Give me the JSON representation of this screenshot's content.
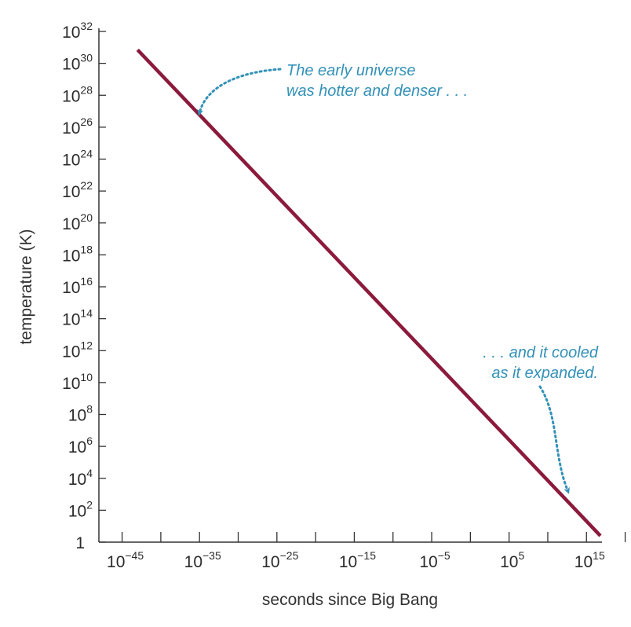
{
  "chart_data": {
    "type": "line",
    "title": "",
    "xlabel": "seconds since Big Bang",
    "ylabel": "temperature (K)",
    "x_scale": "log",
    "y_scale": "log",
    "xlim_exponent": [
      -48,
      17
    ],
    "ylim_exponent": [
      0,
      32
    ],
    "x_ticks": [
      {
        "base": "10",
        "exp": "−45",
        "value_exp": -45
      },
      {
        "base": "10",
        "exp": "−35",
        "value_exp": -35
      },
      {
        "base": "10",
        "exp": "−25",
        "value_exp": -25
      },
      {
        "base": "10",
        "exp": "−15",
        "value_exp": -15
      },
      {
        "base": "10",
        "exp": "−5",
        "value_exp": -5
      },
      {
        "base": "10",
        "exp": "5",
        "value_exp": 5
      },
      {
        "base": "10",
        "exp": "15",
        "value_exp": 15
      }
    ],
    "x_minor_ticks_exp": [
      -40,
      -30,
      -20,
      -10,
      0,
      10,
      20
    ],
    "y_ticks": [
      {
        "base": "1",
        "exp": "",
        "value_exp": 0
      },
      {
        "base": "10",
        "exp": "2",
        "value_exp": 2
      },
      {
        "base": "10",
        "exp": "4",
        "value_exp": 4
      },
      {
        "base": "10",
        "exp": "6",
        "value_exp": 6
      },
      {
        "base": "10",
        "exp": "8",
        "value_exp": 8
      },
      {
        "base": "10",
        "exp": "10",
        "value_exp": 10
      },
      {
        "base": "10",
        "exp": "12",
        "value_exp": 12
      },
      {
        "base": "10",
        "exp": "14",
        "value_exp": 14
      },
      {
        "base": "10",
        "exp": "16",
        "value_exp": 16
      },
      {
        "base": "10",
        "exp": "18",
        "value_exp": 18
      },
      {
        "base": "10",
        "exp": "20",
        "value_exp": 20
      },
      {
        "base": "10",
        "exp": "22",
        "value_exp": 22
      },
      {
        "base": "10",
        "exp": "24",
        "value_exp": 24
      },
      {
        "base": "10",
        "exp": "26",
        "value_exp": 26
      },
      {
        "base": "10",
        "exp": "28",
        "value_exp": 28
      },
      {
        "base": "10",
        "exp": "30",
        "value_exp": 30
      },
      {
        "base": "10",
        "exp": "32",
        "value_exp": 32
      }
    ],
    "series": [
      {
        "color": "#8b1a3c",
        "points_log10": [
          {
            "x": -43,
            "y": 30.85
          },
          {
            "x": 16.8,
            "y": 0.4
          }
        ]
      }
    ],
    "grid": false,
    "annotations": [
      {
        "lines": [
          "The early universe",
          "was hotter and denser . . ."
        ],
        "color": "#3391b8",
        "points_to_log10": {
          "x": -35,
          "y": 26.9
        }
      },
      {
        "lines": [
          ". . . and it cooled",
          "as it expanded."
        ],
        "color": "#3391b8",
        "points_to_log10": {
          "x": 12.6,
          "y": 3.2
        }
      }
    ]
  }
}
